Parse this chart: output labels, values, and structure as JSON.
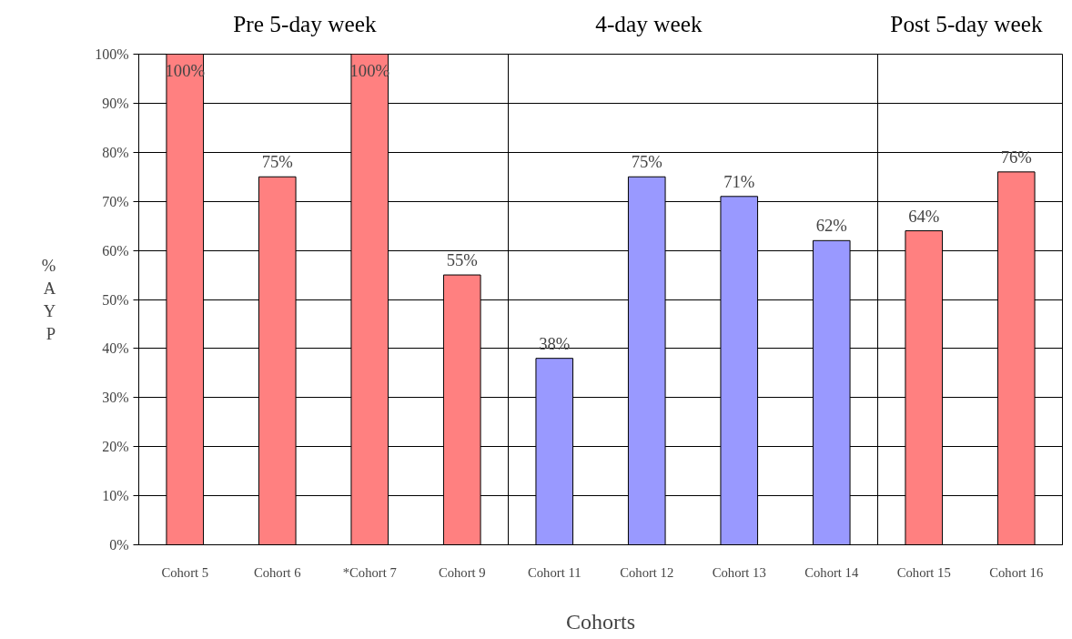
{
  "chart_data": {
    "type": "bar",
    "xlabel": "Cohorts",
    "ylabel": "% AYP",
    "categories": [
      "Cohort 5",
      "Cohort 6",
      "*Cohort 7",
      "Cohort 9",
      "Cohort 11",
      "Cohort 12",
      "Cohort 13",
      "Cohort 14",
      "Cohort 15",
      "Cohort 16"
    ],
    "values": [
      100,
      75,
      100,
      55,
      38,
      75,
      71,
      62,
      64,
      76
    ],
    "colors": [
      "#ff8080",
      "#ff8080",
      "#ff8080",
      "#ff8080",
      "#9999ff",
      "#9999ff",
      "#9999ff",
      "#9999ff",
      "#ff8080",
      "#ff8080"
    ],
    "value_labels": [
      "100%",
      "75%",
      "100%",
      "55%",
      "38%",
      "75%",
      "71%",
      "62%",
      "64%",
      "76%"
    ],
    "ylim": [
      0,
      100
    ],
    "yticks": [
      {
        "value": 0,
        "label": "0%"
      },
      {
        "value": 10,
        "label": "10%"
      },
      {
        "value": 20,
        "label": "20%"
      },
      {
        "value": 30,
        "label": "30%"
      },
      {
        "value": 40,
        "label": "40%"
      },
      {
        "value": 50,
        "label": "50%"
      },
      {
        "value": 60,
        "label": "60%"
      },
      {
        "value": 70,
        "label": "70%"
      },
      {
        "value": 80,
        "label": "80%"
      },
      {
        "value": 90,
        "label": "90%"
      },
      {
        "value": 100,
        "label": "100%"
      }
    ],
    "annotations": [
      "Pre 5-day week",
      "4-day week",
      "Post 5-day week"
    ],
    "grid": "y"
  }
}
